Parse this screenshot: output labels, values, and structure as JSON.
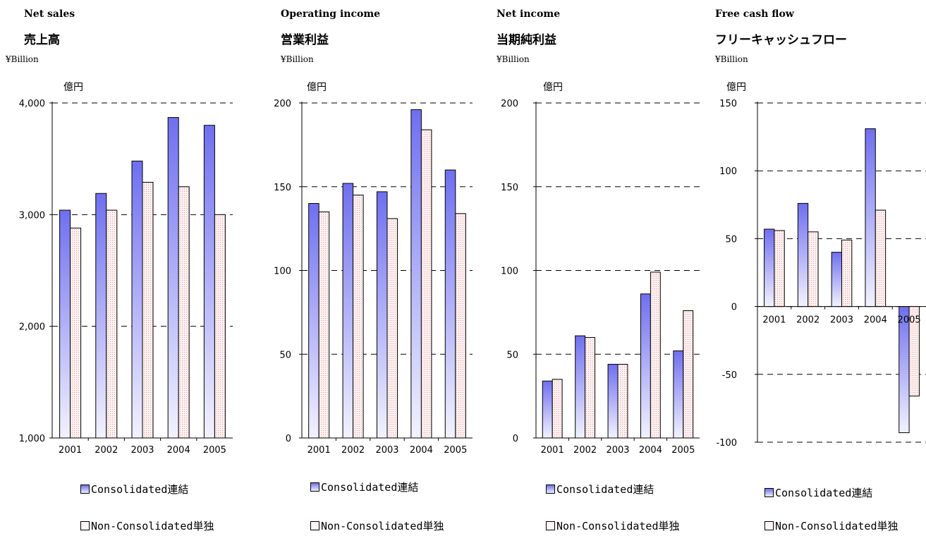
{
  "legend": {
    "consolidated": "Consolidated連結",
    "non_consolidated": "Non-Consolidated単独"
  },
  "colors": {
    "consolidated_top": "#6f6ff0",
    "consolidated_bottom": "#f2f2ff",
    "non_consolidated_fill": "#fdf0f0",
    "non_consolidated_dots": "#e0a0a0",
    "gridline": "#000000"
  },
  "charts": [
    {
      "title_en": "Net sales",
      "title_jp": "売上高",
      "unit": "¥Billion",
      "axis_unit_label": "億円"
    },
    {
      "title_en": "Operating income",
      "title_jp": "営業利益",
      "unit": "¥Billion",
      "axis_unit_label": "億円"
    },
    {
      "title_en": "Net income",
      "title_jp": "当期純利益",
      "unit": "¥Billion",
      "axis_unit_label": "億円"
    },
    {
      "title_en": "Free cash flow",
      "title_jp": "フリーキャッシュフロー",
      "unit": "¥Billion",
      "axis_unit_label": "億円"
    }
  ],
  "chart_data": [
    {
      "type": "bar",
      "title": "Net sales 売上高",
      "categories": [
        "2001",
        "2002",
        "2003",
        "2004",
        "2005"
      ],
      "series": [
        {
          "name": "Consolidated連結",
          "values": [
            3040,
            3190,
            3480,
            3870,
            3800
          ]
        },
        {
          "name": "Non-Consolidated単独",
          "values": [
            2880,
            3040,
            3290,
            3250,
            3000
          ]
        }
      ],
      "ylim": [
        1000,
        4000
      ],
      "yticks": [
        1000,
        2000,
        3000,
        4000
      ],
      "ytick_labels": [
        "1,000",
        "2,000",
        "3,000",
        "4,000"
      ],
      "grid": true,
      "legend_position": "bottom"
    },
    {
      "type": "bar",
      "title": "Operating income 営業利益",
      "categories": [
        "2001",
        "2002",
        "2003",
        "2004",
        "2005"
      ],
      "series": [
        {
          "name": "Consolidated連結",
          "values": [
            140,
            152,
            147,
            196,
            160
          ]
        },
        {
          "name": "Non-Consolidated単独",
          "values": [
            135,
            145,
            131,
            184,
            134
          ]
        }
      ],
      "ylim": [
        0,
        200
      ],
      "yticks": [
        0,
        50,
        100,
        150,
        200
      ],
      "ytick_labels": [
        "0",
        "50",
        "100",
        "150",
        "200"
      ],
      "grid": true,
      "legend_position": "bottom"
    },
    {
      "type": "bar",
      "title": "Net income 当期純利益",
      "categories": [
        "2001",
        "2002",
        "2003",
        "2004",
        "2005"
      ],
      "series": [
        {
          "name": "Consolidated連結",
          "values": [
            34,
            61,
            44,
            86,
            52
          ]
        },
        {
          "name": "Non-Consolidated単独",
          "values": [
            35,
            60,
            44,
            99,
            76
          ]
        }
      ],
      "ylim": [
        0,
        200
      ],
      "yticks": [
        0,
        50,
        100,
        150,
        200
      ],
      "ytick_labels": [
        "0",
        "50",
        "100",
        "150",
        "200"
      ],
      "grid": true,
      "legend_position": "bottom"
    },
    {
      "type": "bar",
      "title": "Free cash flow フリーキャッシュフロー",
      "categories": [
        "2001",
        "2002",
        "2003",
        "2004",
        "2005"
      ],
      "series": [
        {
          "name": "Consolidated連結",
          "values": [
            57,
            76,
            40,
            131,
            -93
          ]
        },
        {
          "name": "Non-Consolidated単独",
          "values": [
            56,
            55,
            49,
            71,
            -66
          ]
        }
      ],
      "ylim": [
        -100,
        150
      ],
      "yticks": [
        -100,
        -50,
        0,
        50,
        100,
        150
      ],
      "ytick_labels": [
        "-100",
        "-50",
        "0",
        "50",
        "100",
        "150"
      ],
      "grid": true,
      "legend_position": "bottom"
    }
  ]
}
